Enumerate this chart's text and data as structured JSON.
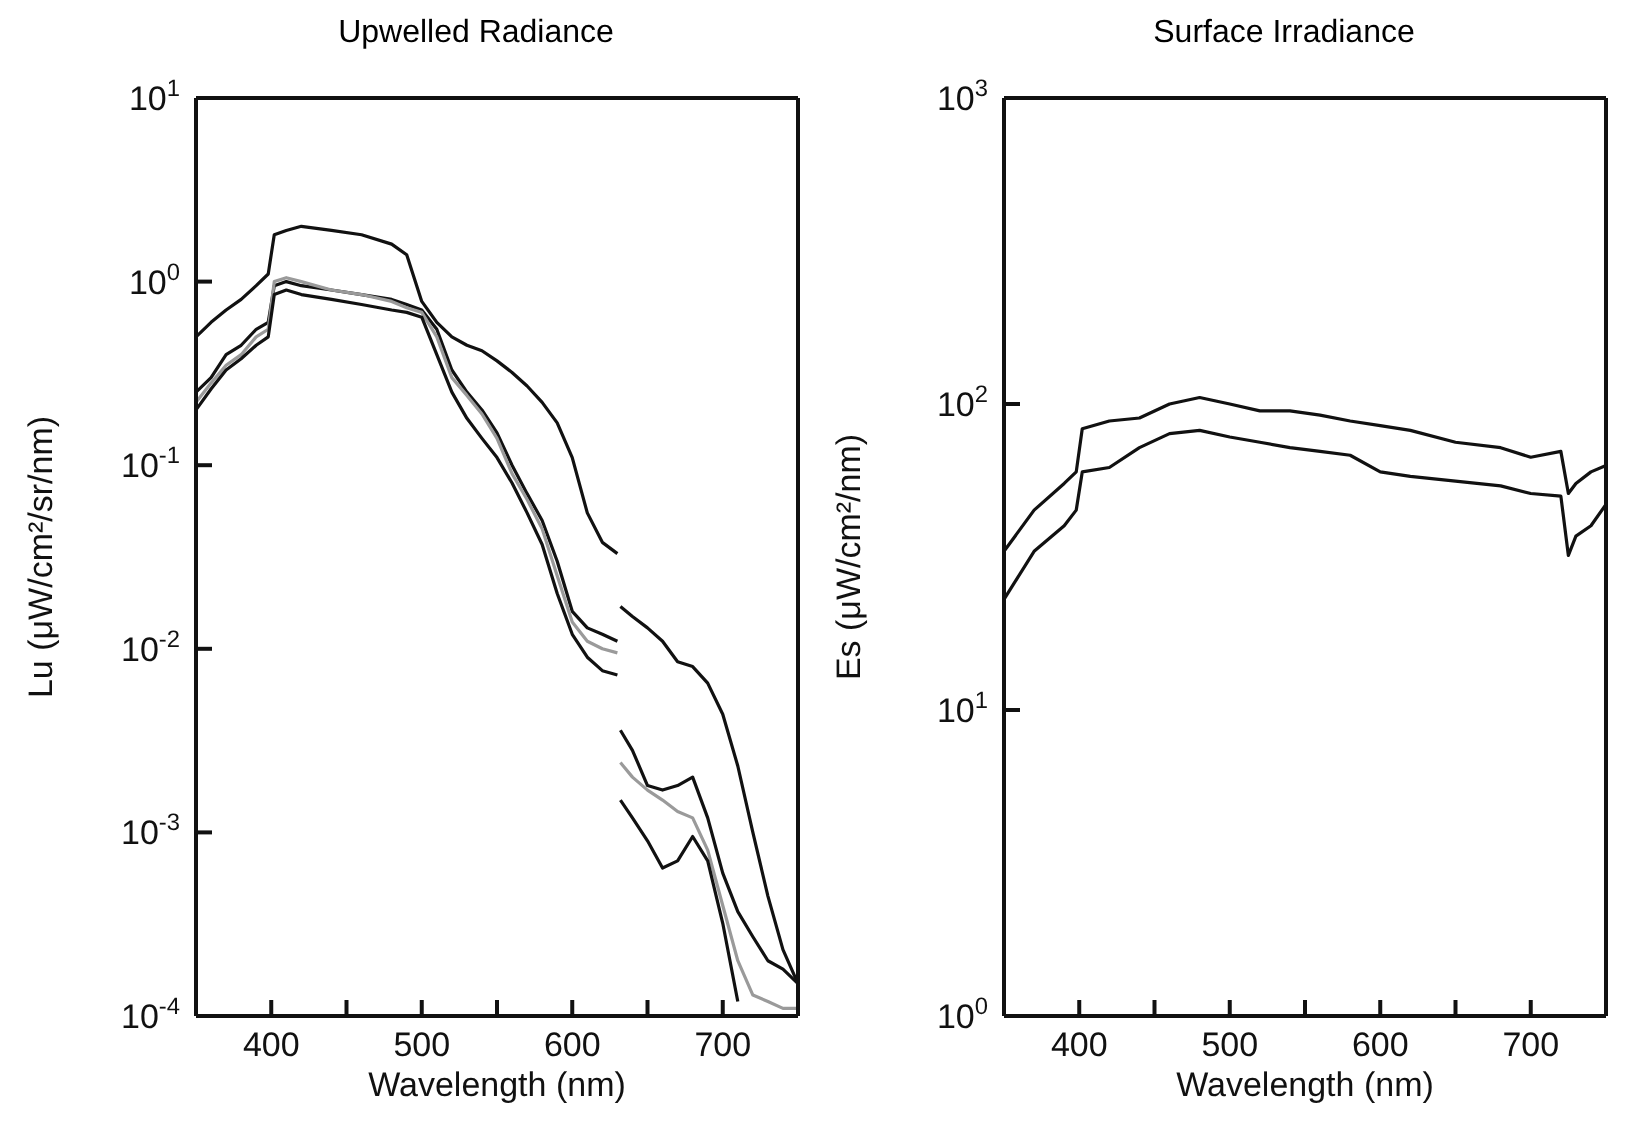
{
  "chart_data": [
    {
      "type": "line",
      "title": "Upwelled Radiance",
      "xlabel": "Wavelength (nm)",
      "ylabel": "Lu  (μW/cm²/sr/nm)",
      "log": "y",
      "xlim": [
        350,
        750
      ],
      "xticks": [
        {
          "value": 400,
          "label": "400"
        },
        {
          "value": 450,
          "label": null
        },
        {
          "value": 500,
          "label": "500"
        },
        {
          "value": 550,
          "label": null
        },
        {
          "value": 600,
          "label": "600"
        },
        {
          "value": 650,
          "label": null
        },
        {
          "value": 700,
          "label": "700"
        }
      ],
      "ylim": [
        0.0001,
        10
      ],
      "yticks": [
        {
          "value": 0.0001,
          "label": "10$^{-4}$"
        },
        {
          "value": 0.001,
          "label": "10$^{-3}$"
        },
        {
          "value": 0.01,
          "label": "10$^{-2}$"
        },
        {
          "value": 0.1,
          "label": "10$^{-1}$"
        },
        {
          "value": 1,
          "label": "10$^{0}$"
        },
        {
          "value": 10,
          "label": "10$^{1}$"
        }
      ],
      "marker": "none",
      "x": [
        350,
        360,
        370,
        380,
        390,
        398,
        402,
        410,
        420,
        440,
        460,
        480,
        490,
        500,
        510,
        520,
        530,
        540,
        550,
        560,
        570,
        580,
        590,
        600,
        610,
        620,
        630,
        631,
        632,
        640,
        650,
        660,
        670,
        680,
        690,
        700,
        710,
        720,
        730,
        740,
        750
      ],
      "series": [
        {
          "color": "#111111",
          "values": [
            0.5,
            0.6,
            0.7,
            0.8,
            0.95,
            1.1,
            1.8,
            1.9,
            2.0,
            1.9,
            1.8,
            1.6,
            1.4,
            0.78,
            0.6,
            0.5,
            0.45,
            0.42,
            0.37,
            0.32,
            0.27,
            0.22,
            0.17,
            0.11,
            0.055,
            0.038,
            0.033,
            null,
            0.017,
            0.015,
            0.013,
            0.011,
            0.0085,
            0.008,
            0.0065,
            0.0044,
            0.0023,
            0.001,
            0.00045,
            0.00023,
            0.00015
          ]
        },
        {
          "color": "#111111",
          "values": [
            0.25,
            0.3,
            0.4,
            0.45,
            0.55,
            0.6,
            0.95,
            1.0,
            0.95,
            0.9,
            0.85,
            0.8,
            0.75,
            0.7,
            0.55,
            0.33,
            0.25,
            0.2,
            0.15,
            0.1,
            0.07,
            0.05,
            0.03,
            0.016,
            0.013,
            0.012,
            0.011,
            null,
            0.0036,
            0.0028,
            0.0018,
            0.0017,
            0.0018,
            0.002,
            0.0012,
            0.0006,
            0.00037,
            0.00027,
            0.0002,
            0.00018,
            0.00015
          ]
        },
        {
          "color": "#9a9a9a",
          "values": [
            0.22,
            0.28,
            0.35,
            0.4,
            0.5,
            0.55,
            1.0,
            1.05,
            1.0,
            0.9,
            0.85,
            0.78,
            0.72,
            0.68,
            0.5,
            0.3,
            0.24,
            0.19,
            0.14,
            0.09,
            0.065,
            0.045,
            0.025,
            0.014,
            0.011,
            0.01,
            0.0095,
            null,
            0.0024,
            0.002,
            0.0017,
            0.0015,
            0.0013,
            0.0012,
            0.0008,
            0.0004,
            0.0002,
            0.00013,
            0.00012,
            0.00011,
            0.00011
          ]
        },
        {
          "color": "#111111",
          "values": [
            0.2,
            0.26,
            0.33,
            0.38,
            0.45,
            0.5,
            0.85,
            0.9,
            0.85,
            0.8,
            0.75,
            0.7,
            0.68,
            0.64,
            0.4,
            0.25,
            0.18,
            0.14,
            0.11,
            0.08,
            0.055,
            0.037,
            0.02,
            0.012,
            0.009,
            0.0076,
            0.0072,
            null,
            0.0015,
            0.0012,
            0.0009,
            0.00064,
            0.0007,
            0.00095,
            0.0007,
            0.00032,
            0.00012,
            null,
            null,
            null,
            null
          ]
        }
      ]
    },
    {
      "type": "line",
      "title": "Surface Irradiance",
      "xlabel": "Wavelength (nm)",
      "ylabel": "Es  (μW/cm²/nm)",
      "log": "y",
      "xlim": [
        350,
        750
      ],
      "xticks": [
        {
          "value": 400,
          "label": "400"
        },
        {
          "value": 450,
          "label": null
        },
        {
          "value": 500,
          "label": "500"
        },
        {
          "value": 550,
          "label": null
        },
        {
          "value": 600,
          "label": "600"
        },
        {
          "value": 650,
          "label": null
        },
        {
          "value": 700,
          "label": "700"
        }
      ],
      "ylim": [
        1,
        1000
      ],
      "yticks": [
        {
          "value": 1,
          "label": "10$^{0}$"
        },
        {
          "value": 10,
          "label": "10$^{1}$"
        },
        {
          "value": 100,
          "label": "10$^{2}$"
        },
        {
          "value": 1000,
          "label": "10$^{3}$"
        }
      ],
      "marker": "none",
      "x": [
        350,
        370,
        390,
        398,
        402,
        420,
        440,
        460,
        480,
        500,
        520,
        540,
        560,
        580,
        600,
        620,
        650,
        680,
        700,
        720,
        725,
        730,
        740,
        750
      ],
      "series": [
        {
          "color": "#111111",
          "values": [
            33,
            45,
            55,
            60,
            83,
            88,
            90,
            100,
            105,
            100,
            95,
            95,
            92,
            88,
            85,
            82,
            75,
            72,
            67,
            70,
            51,
            55,
            60,
            63
          ]
        },
        {
          "color": "#111111",
          "values": [
            23,
            33,
            40,
            45,
            60,
            62,
            72,
            80,
            82,
            78,
            75,
            72,
            70,
            68,
            60,
            58,
            56,
            54,
            51,
            50,
            32,
            37,
            40,
            47
          ]
        }
      ]
    }
  ]
}
